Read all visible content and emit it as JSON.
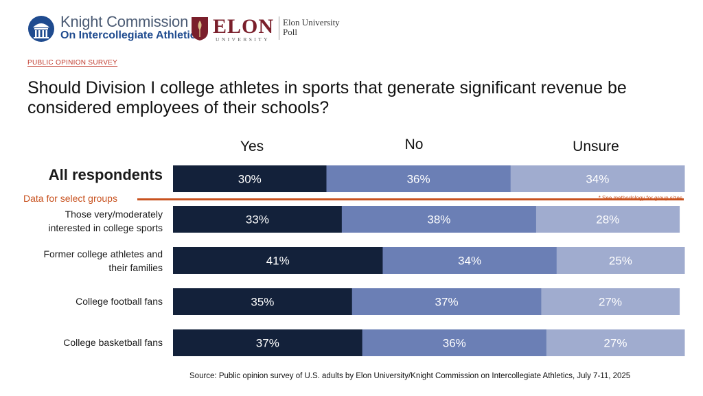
{
  "header": {
    "kc_line1": "Knight Commission",
    "kc_line2": "On Intercollegiate Athletics",
    "elon_name": "ELON",
    "elon_university": "UNIVERSITY",
    "elon_poll_line1": "Elon University",
    "elon_poll_line2": "Poll",
    "survey_label": "PUBLIC OPINION SURVEY"
  },
  "divider": {
    "label": "Data for select groups",
    "note": "* See methodology for group sizes"
  },
  "source": "Source: Public opinion survey of U.S. adults by Elon University/Knight Commission on Intercollegiate Athletics, July 7-11, 2025",
  "colors": {
    "yes": "#13213a",
    "no": "#6b7fb5",
    "unsure": "#a0accf",
    "accent": "#c8521f"
  },
  "chart_data": {
    "type": "bar",
    "orientation": "horizontal-stacked-100",
    "title": "Should Division I college athletes in sports that generate significant revenue be considered employees of their schools?",
    "categories": [
      "All respondents",
      "Those very/moderately interested in college sports",
      "Former college athletes and their families",
      "College football fans",
      "College basketball fans"
    ],
    "category_lines": [
      [
        "All respondents"
      ],
      [
        "Those very/moderately",
        "interested in college sports"
      ],
      [
        "Former college athletes and",
        "their families"
      ],
      [
        "College football fans"
      ],
      [
        "College basketball fans"
      ]
    ],
    "series": [
      {
        "name": "Yes",
        "values": [
          30,
          33,
          41,
          35,
          37
        ]
      },
      {
        "name": "No",
        "values": [
          36,
          38,
          34,
          37,
          36
        ]
      },
      {
        "name": "Unsure",
        "values": [
          34,
          28,
          25,
          27,
          27
        ]
      }
    ],
    "value_suffix": "%",
    "xlim": [
      0,
      100
    ]
  }
}
